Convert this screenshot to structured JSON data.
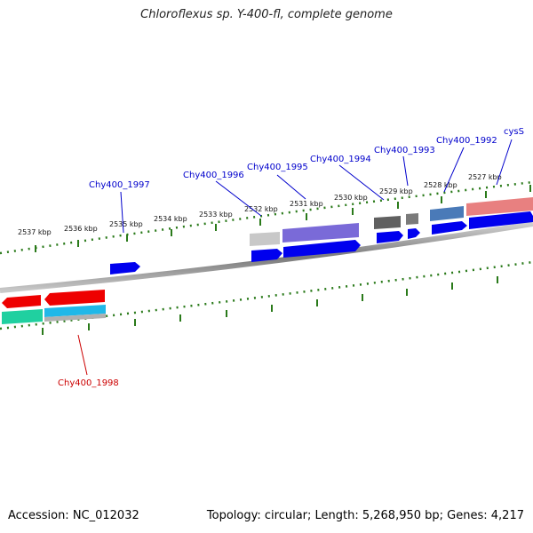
{
  "title": "Chloroflexus sp. Y-400-fl, complete genome",
  "footer": {
    "accession": "Accession: NC_012032",
    "summary": "Topology: circular; Length: 5,268,950 bp; Genes: 4,217"
  },
  "ticks": [
    "2537 kbp",
    "2536 kbp",
    "2535 kbp",
    "2534 kbp",
    "2533 kbp",
    "2532 kbp",
    "2531 kbp",
    "2530 kbp",
    "2529 kbp",
    "2528 kbp",
    "2527 kbp"
  ],
  "gene_labels": {
    "chy1997": "Chy400_1997",
    "chy1996": "Chy400_1996",
    "chy1995": "Chy400_1995",
    "chy1994": "Chy400_1994",
    "chy1993": "Chy400_1993",
    "chy1992": "Chy400_1992",
    "cyss": "cysS",
    "chy1998": "Chy400_1998"
  },
  "colors": {
    "forward_label": "#0000cc",
    "reverse_label": "#cc0000",
    "backbone": "#888888",
    "tick": "#2a7a1a"
  }
}
